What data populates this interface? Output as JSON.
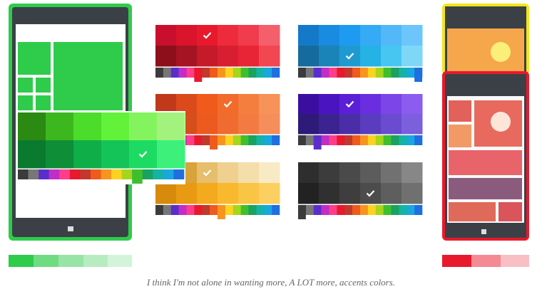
{
  "caption": "I think I'm not alone in wanting more, A LOT more, accents colors."
}
